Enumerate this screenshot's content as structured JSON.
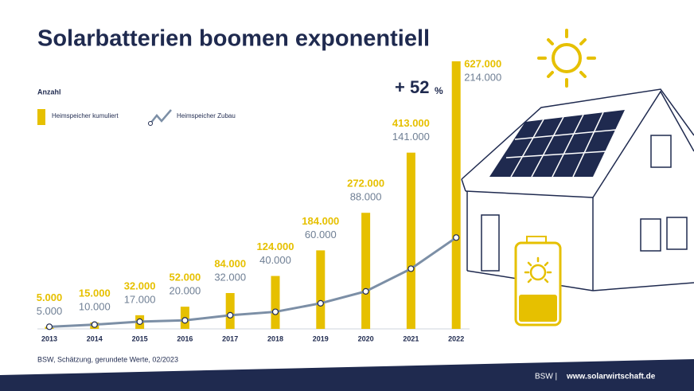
{
  "chart_data": {
    "type": "bar-line",
    "title": "Solarbatterien boomen exponentiell",
    "legend_title": "Anzahl",
    "categories": [
      "2013",
      "2014",
      "2015",
      "2016",
      "2017",
      "2018",
      "2019",
      "2020",
      "2021",
      "2022"
    ],
    "series": [
      {
        "name": "Heimspeicher kumuliert",
        "type": "bar",
        "color": "#e6c000",
        "values": [
          5000,
          15000,
          32000,
          52000,
          84000,
          124000,
          184000,
          272000,
          413000,
          627000
        ],
        "value_labels": [
          "5.000",
          "15.000",
          "32.000",
          "52.000",
          "84.000",
          "124.000",
          "184.000",
          "272.000",
          "413.000",
          "627.000"
        ]
      },
      {
        "name": "Heimspeicher Zubau",
        "type": "line",
        "color": "#7c8fa6",
        "values": [
          5000,
          10000,
          17000,
          20000,
          32000,
          40000,
          60000,
          88000,
          141000,
          214000
        ],
        "value_labels": [
          "5.000",
          "10.000",
          "17.000",
          "20.000",
          "32.000",
          "40.000",
          "60.000",
          "88.000",
          "141.000",
          "214.000"
        ]
      }
    ],
    "ylim": [
      0,
      627000
    ],
    "annotation": {
      "text": "+ 52",
      "unit": "%"
    },
    "source": "BSW, Schätzung, gerundete Werte, 02/2023",
    "footer": {
      "org": "BSW |",
      "url": "www.solarwirtschaft.de"
    }
  }
}
